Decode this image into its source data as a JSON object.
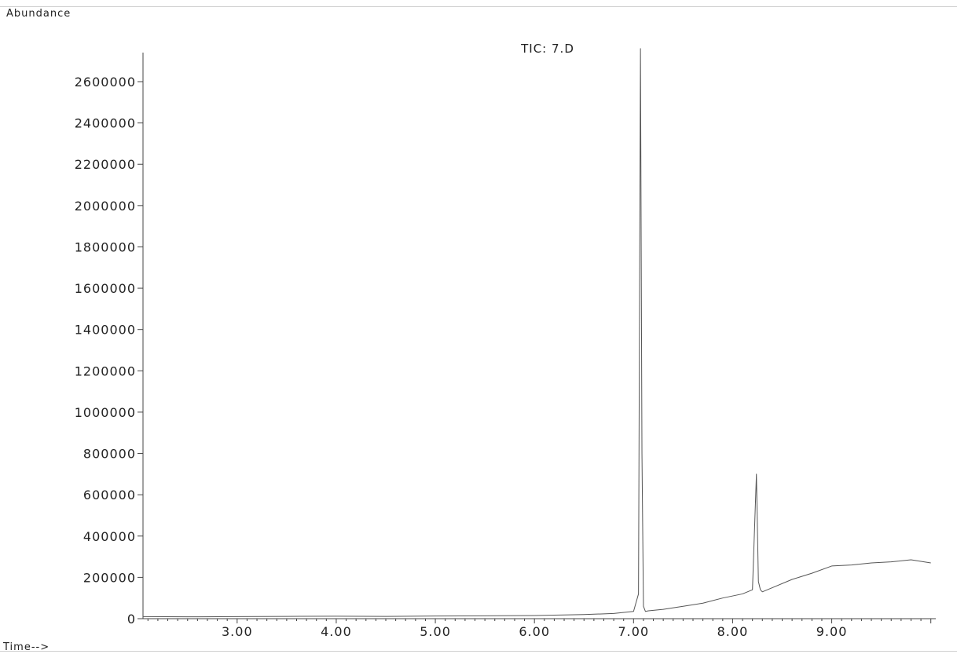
{
  "chart_data": {
    "type": "line",
    "title": "TIC: 7.D",
    "ylabel": "Abundance",
    "xlabel": "Time-->",
    "xlim": [
      2.05,
      10.05
    ],
    "ylim": [
      0,
      2700000
    ],
    "xticks": [
      3.0,
      4.0,
      5.0,
      6.0,
      7.0,
      8.0,
      9.0
    ],
    "xtick_labels": [
      "3.00",
      "4.00",
      "5.00",
      "6.00",
      "7.00",
      "8.00",
      "9.00"
    ],
    "yticks": [
      0,
      200000,
      400000,
      600000,
      800000,
      1000000,
      1200000,
      1400000,
      1600000,
      1800000,
      2000000,
      2200000,
      2400000,
      2600000
    ],
    "ytick_labels": [
      "0",
      "200000",
      "400000",
      "600000",
      "800000",
      "1000000",
      "1200000",
      "1400000",
      "1600000",
      "1800000",
      "2000000",
      "2200000",
      "2400000",
      "2600000"
    ],
    "grid": false,
    "series": [
      {
        "color": "#555555",
        "x": [
          2.05,
          2.5,
          3.0,
          3.5,
          4.0,
          4.5,
          5.0,
          5.5,
          6.0,
          6.5,
          6.8,
          7.0,
          7.05,
          7.07,
          7.085,
          7.1,
          7.12,
          7.15,
          7.3,
          7.5,
          7.7,
          7.9,
          8.1,
          8.2,
          8.24,
          8.26,
          8.28,
          8.3,
          8.4,
          8.6,
          8.8,
          9.0,
          9.2,
          9.4,
          9.6,
          9.8,
          10.0
        ],
        "y": [
          10000,
          9000,
          10000,
          11000,
          12000,
          11000,
          13000,
          14000,
          15000,
          20000,
          25000,
          35000,
          120000,
          2760000,
          800000,
          60000,
          35000,
          38000,
          45000,
          60000,
          75000,
          100000,
          120000,
          140000,
          700000,
          180000,
          140000,
          130000,
          150000,
          190000,
          220000,
          255000,
          260000,
          270000,
          275000,
          285000,
          270000
        ]
      }
    ]
  }
}
